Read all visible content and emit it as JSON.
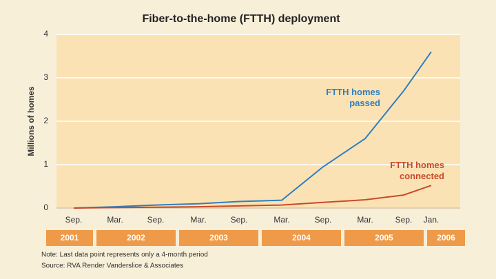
{
  "chart_data": {
    "type": "line",
    "title": "Fiber-to-the-home (FTTH) deployment",
    "y_label": "Millions of homes",
    "categories": [
      "Sep.",
      "Mar.",
      "Sep.",
      "Mar.",
      "Sep.",
      "Mar.",
      "Sep.",
      "Mar.",
      "Sep.",
      "Jan."
    ],
    "years": [
      "2001",
      "2002",
      "2003",
      "2004",
      "2005",
      "2006"
    ],
    "series": [
      {
        "name": "FTTH homes passed",
        "color": "#2e7fc0",
        "values": [
          0,
          0.03,
          0.07,
          0.1,
          0.15,
          0.18,
          0.95,
          1.6,
          2.7,
          3.6
        ]
      },
      {
        "name": "FTTH homes connected",
        "color": "#c84a2a",
        "values": [
          0,
          0.01,
          0.02,
          0.03,
          0.05,
          0.07,
          0.13,
          0.19,
          0.3,
          0.52
        ]
      }
    ],
    "ylim": [
      0,
      4
    ],
    "yticks": [
      0,
      1,
      2,
      3,
      4
    ],
    "grid": true,
    "notes": [
      "Note: Last data point represents only a 4-month period",
      "Source: RVA Render Vanderslice & Associates"
    ]
  }
}
